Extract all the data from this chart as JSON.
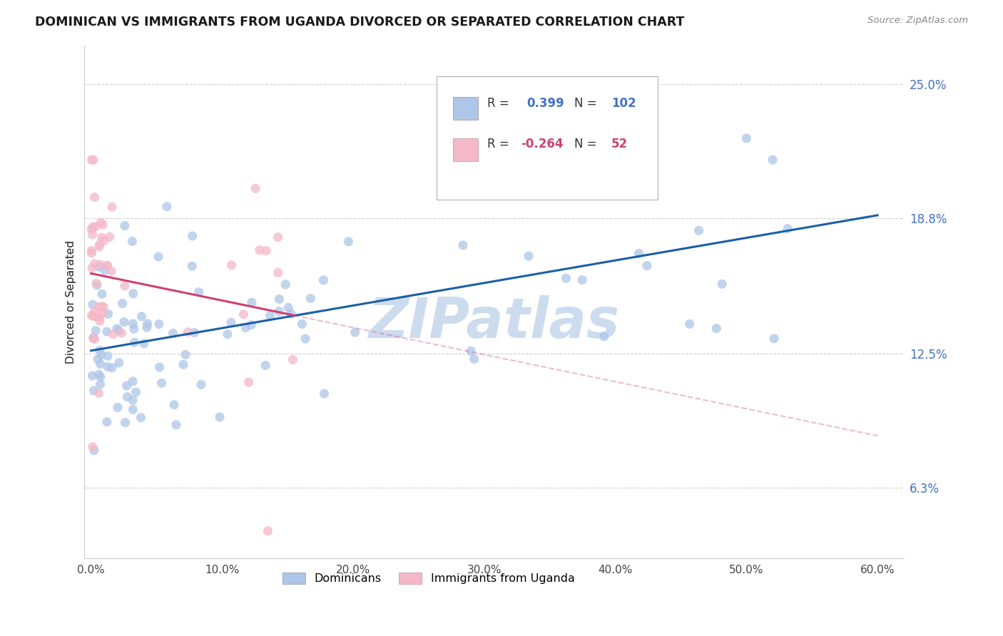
{
  "title": "DOMINICAN VS IMMIGRANTS FROM UGANDA DIVORCED OR SEPARATED CORRELATION CHART",
  "source": "Source: ZipAtlas.com",
  "ylabel": "Divorced or Separated",
  "xlabel_ticks": [
    "0.0%",
    "10.0%",
    "20.0%",
    "30.0%",
    "40.0%",
    "50.0%",
    "60.0%"
  ],
  "xlabel_vals": [
    0.0,
    0.1,
    0.2,
    0.3,
    0.4,
    0.5,
    0.6
  ],
  "ytick_labels": [
    "6.3%",
    "12.5%",
    "18.8%",
    "25.0%"
  ],
  "ytick_vals": [
    0.063,
    0.125,
    0.188,
    0.25
  ],
  "xlim": [
    -0.005,
    0.62
  ],
  "ylim": [
    0.03,
    0.268
  ],
  "r_blue": 0.399,
  "n_blue": 102,
  "r_pink": -0.264,
  "n_pink": 52,
  "blue_color": "#aec6e8",
  "blue_line_color": "#1a5fa8",
  "pink_color": "#f4b8c8",
  "pink_line_color": "#d04070",
  "watermark": "ZIPatlas",
  "watermark_color": "#ccdcee",
  "legend_label_blue": "Dominicans",
  "legend_label_pink": "Immigrants from Uganda",
  "grid_color": "#cccccc",
  "tick_color_right": "#4472c4"
}
